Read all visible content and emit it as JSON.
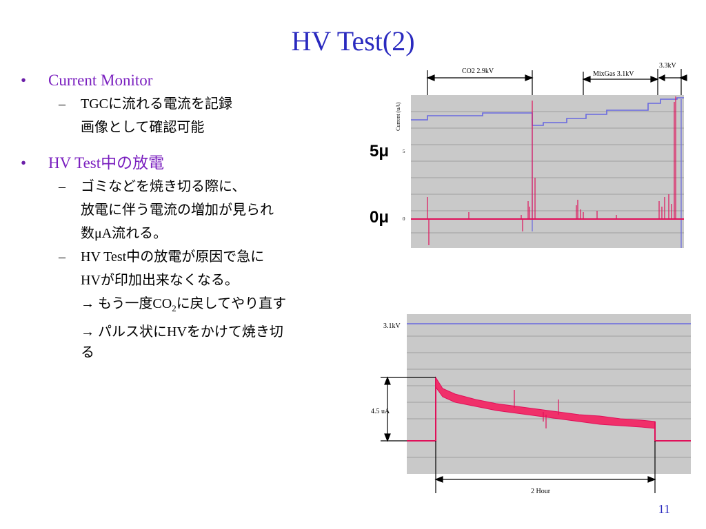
{
  "slide": {
    "title": "HV Test(2)",
    "page_number": "11"
  },
  "bullets": {
    "b1": "Current Monitor",
    "b1_sub1_line1": "TGCに流れる電流を記録",
    "b1_sub1_line2": "画像として確認可能",
    "b2": "HV Test中の放電",
    "b2_sub1_line1": "ゴミなどを焼き切る際に、",
    "b2_sub1_line2": "放電に伴う電流の増加が見られ",
    "b2_sub1_line3": "数μA流れる。",
    "b2_sub2_line1": "HV Test中の放電が原因で急に",
    "b2_sub2_line2": "HVが印加出来なくなる。",
    "b2_sub2_line3_pre": "→ もう一度CO",
    "b2_sub2_line3_sub": "2",
    "b2_sub2_line3_post": "に戻してやり直す",
    "b2_sub2_line4": "→ パルス状にHVをかけて焼き切",
    "b2_sub2_line5": "る",
    "dash": "–",
    "dot": "•"
  },
  "chart_data": [
    {
      "type": "line",
      "ylabel": "Current (uA)",
      "y_tick_labels": [
        "5",
        "0"
      ],
      "outer_labels": [
        "5μ",
        "0μ"
      ],
      "annotations": [
        "CO2 2.9kV",
        "MixGas 3.1kV",
        "3.3kV"
      ],
      "series": [
        {
          "color": "#7070e0",
          "values": [
            2.9,
            3.1,
            3.3
          ]
        },
        {
          "color": "#e0105a",
          "values": [
            0,
            0,
            0
          ]
        }
      ],
      "colors": {
        "background": "#c8c8c8",
        "voltage": "#7070e0",
        "current": "#e0105a"
      }
    },
    {
      "type": "line",
      "annotations": [
        "3.1kV",
        "4.5 uA",
        "2 Hour"
      ],
      "colors": {
        "background": "#c8c8c8",
        "voltage": "#7070e0",
        "current": "#e0105a"
      }
    }
  ]
}
